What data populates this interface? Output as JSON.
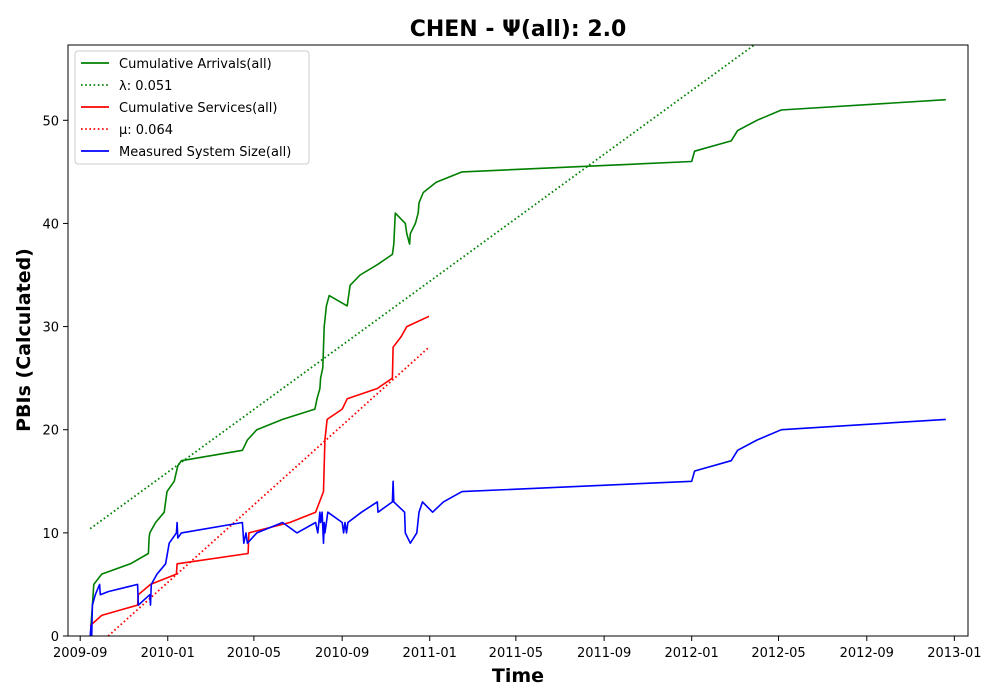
{
  "chart_data": {
    "type": "line",
    "title": "CHEN -  Ψ(all): 2.0",
    "xlabel": "Time",
    "ylabel": "PBIs (Calculated)",
    "xlim": [
      "2009-08-15",
      "2013-01-20"
    ],
    "ylim": [
      0,
      57.3
    ],
    "grid": false,
    "legend_placement": "top-left",
    "x_ticks": [
      "2009-09",
      "2010-01",
      "2010-05",
      "2010-09",
      "2011-01",
      "2011-05",
      "2011-09",
      "2012-01",
      "2012-05",
      "2012-09",
      "2013-01"
    ],
    "y_ticks": [
      0,
      10,
      20,
      30,
      40,
      50
    ],
    "series": [
      {
        "name": "Cumulative Arrivals(all)",
        "style": "solid",
        "color": "#008000",
        "points": [
          [
            "2009-09-16",
            1
          ],
          [
            "2009-09-20",
            5
          ],
          [
            "2009-10-01",
            6
          ],
          [
            "2009-11-10",
            7
          ],
          [
            "2009-12-05",
            8
          ],
          [
            "2009-12-06",
            9.5
          ],
          [
            "2009-12-07",
            10
          ],
          [
            "2009-12-15",
            11
          ],
          [
            "2009-12-27",
            12
          ],
          [
            "2009-12-31",
            14
          ],
          [
            "2010-01-10",
            15
          ],
          [
            "2010-01-15",
            16.5
          ],
          [
            "2010-01-20",
            17
          ],
          [
            "2010-04-15",
            18
          ],
          [
            "2010-04-22",
            19
          ],
          [
            "2010-05-05",
            20
          ],
          [
            "2010-06-10",
            21
          ],
          [
            "2010-07-25",
            22
          ],
          [
            "2010-07-28",
            23
          ],
          [
            "2010-08-01",
            24
          ],
          [
            "2010-08-02",
            25
          ],
          [
            "2010-08-05",
            26
          ],
          [
            "2010-08-07",
            30
          ],
          [
            "2010-08-10",
            32
          ],
          [
            "2010-08-14",
            33
          ],
          [
            "2010-09-08",
            32
          ],
          [
            "2010-09-12",
            34
          ],
          [
            "2010-09-26",
            35
          ],
          [
            "2010-10-20",
            36
          ],
          [
            "2010-11-10",
            37
          ],
          [
            "2010-11-12",
            38
          ],
          [
            "2010-11-14",
            41
          ],
          [
            "2010-11-28",
            40
          ],
          [
            "2010-11-30",
            39
          ],
          [
            "2010-12-04",
            38
          ],
          [
            "2010-12-05",
            39
          ],
          [
            "2010-12-12",
            40
          ],
          [
            "2010-12-16",
            41
          ],
          [
            "2010-12-17",
            42
          ],
          [
            "2010-12-23",
            43
          ],
          [
            "2011-01-10",
            44
          ],
          [
            "2011-02-15",
            45
          ],
          [
            "2012-01-01",
            46
          ],
          [
            "2012-01-05",
            47
          ],
          [
            "2012-02-25",
            48
          ],
          [
            "2012-03-05",
            49
          ],
          [
            "2012-04-01",
            50
          ],
          [
            "2012-05-05",
            51
          ],
          [
            "2012-12-20",
            52
          ]
        ]
      },
      {
        "name": "λ: 0.051",
        "style": "dotted",
        "color": "#008000",
        "points": [
          [
            "2009-09-15",
            10.4
          ],
          [
            "2012-03-28",
            57.3
          ]
        ]
      },
      {
        "name": "Cumulative Services(all)",
        "style": "solid",
        "color": "#ff0000",
        "points": [
          [
            "2009-09-15",
            1
          ],
          [
            "2009-10-01",
            2
          ],
          [
            "2009-11-20",
            3
          ],
          [
            "2009-11-21",
            4
          ],
          [
            "2009-12-08",
            5
          ],
          [
            "2010-01-13",
            6
          ],
          [
            "2010-01-14",
            7
          ],
          [
            "2010-04-23",
            8
          ],
          [
            "2010-04-24",
            10
          ],
          [
            "2010-06-20",
            11
          ],
          [
            "2010-07-26",
            12
          ],
          [
            "2010-08-06",
            14
          ],
          [
            "2010-08-08",
            19
          ],
          [
            "2010-08-11",
            21
          ],
          [
            "2010-09-01",
            22
          ],
          [
            "2010-09-08",
            23
          ],
          [
            "2010-10-20",
            24
          ],
          [
            "2010-11-10",
            25
          ],
          [
            "2010-11-11",
            28
          ],
          [
            "2010-11-22",
            29
          ],
          [
            "2010-11-30",
            30
          ],
          [
            "2010-12-31",
            31
          ]
        ]
      },
      {
        "name": "μ: 0.064",
        "style": "dotted",
        "color": "#ff0000",
        "points": [
          [
            "2009-10-10",
            0
          ],
          [
            "2010-12-31",
            28
          ]
        ]
      },
      {
        "name": "Measured System Size(all)",
        "style": "solid",
        "color": "#0000ff",
        "points": [
          [
            "2009-09-15",
            0
          ],
          [
            "2009-09-16",
            1
          ],
          [
            "2009-09-17",
            0
          ],
          [
            "2009-09-18",
            3
          ],
          [
            "2009-09-22",
            4
          ],
          [
            "2009-09-28",
            5
          ],
          [
            "2009-09-29",
            4
          ],
          [
            "2009-10-10",
            4.3
          ],
          [
            "2009-11-20",
            5
          ],
          [
            "2009-11-21",
            3
          ],
          [
            "2009-12-07",
            4
          ],
          [
            "2009-12-08",
            3
          ],
          [
            "2009-12-09",
            5
          ],
          [
            "2009-12-17",
            6
          ],
          [
            "2009-12-29",
            7
          ],
          [
            "2010-01-03",
            9
          ],
          [
            "2010-01-13",
            10
          ],
          [
            "2010-01-14",
            11
          ],
          [
            "2010-01-15",
            9.5
          ],
          [
            "2010-01-20",
            10
          ],
          [
            "2010-04-15",
            11
          ],
          [
            "2010-04-17",
            9
          ],
          [
            "2010-04-20",
            10
          ],
          [
            "2010-04-22",
            9
          ],
          [
            "2010-05-05",
            10
          ],
          [
            "2010-06-10",
            11
          ],
          [
            "2010-06-30",
            10
          ],
          [
            "2010-07-26",
            11
          ],
          [
            "2010-07-29",
            10
          ],
          [
            "2010-08-01",
            12
          ],
          [
            "2010-08-02",
            11
          ],
          [
            "2010-08-04",
            12
          ],
          [
            "2010-08-06",
            9
          ],
          [
            "2010-08-07",
            11
          ],
          [
            "2010-08-08",
            10
          ],
          [
            "2010-08-10",
            11
          ],
          [
            "2010-08-12",
            12
          ],
          [
            "2010-09-01",
            11
          ],
          [
            "2010-09-03",
            10
          ],
          [
            "2010-09-05",
            11
          ],
          [
            "2010-09-07",
            10
          ],
          [
            "2010-09-09",
            11
          ],
          [
            "2010-09-28",
            12
          ],
          [
            "2010-10-20",
            13
          ],
          [
            "2010-10-21",
            12
          ],
          [
            "2010-11-10",
            13
          ],
          [
            "2010-11-11",
            15
          ],
          [
            "2010-11-12",
            13
          ],
          [
            "2010-11-27",
            12
          ],
          [
            "2010-11-28",
            10
          ],
          [
            "2010-12-05",
            9
          ],
          [
            "2010-12-14",
            10
          ],
          [
            "2010-12-17",
            12
          ],
          [
            "2010-12-22",
            13
          ],
          [
            "2011-01-05",
            12
          ],
          [
            "2011-01-20",
            13
          ],
          [
            "2011-02-15",
            14
          ],
          [
            "2012-01-01",
            15
          ],
          [
            "2012-01-05",
            16
          ],
          [
            "2012-02-25",
            17
          ],
          [
            "2012-03-05",
            18
          ],
          [
            "2012-04-01",
            19
          ],
          [
            "2012-05-05",
            20
          ],
          [
            "2012-12-20",
            21
          ]
        ]
      }
    ]
  }
}
